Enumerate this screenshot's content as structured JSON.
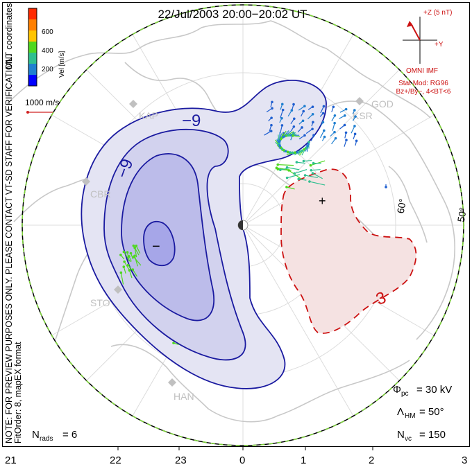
{
  "title": "22/Jul/2003 20:00−20:02 UT",
  "colorbar": {
    "label": "Vel [m/s]",
    "ticks": [
      "600",
      "400",
      "200"
    ],
    "colors": [
      "#ff2a00",
      "#ff7f00",
      "#ffc400",
      "#4fd81f",
      "#2ebf8f",
      "#1f7fd0",
      "#0000ff"
    ]
  },
  "coords_label": "MLT coordinates",
  "velocity_scale": "1000 m/s",
  "imf": {
    "bz_label": "+Z (5 nT)",
    "by_label": "+Y",
    "source": "OMNI IMF",
    "stat_mod": "Stat Mod: RG96",
    "bin": "Bz+/By−, 4<BT<6"
  },
  "station_labels": [
    "KAP",
    "CBR",
    "STO",
    "HAN",
    "GOD",
    "KSR"
  ],
  "latitude_labels": [
    "60°",
    "50°"
  ],
  "contour_labels": [
    "−9",
    "−9",
    "3"
  ],
  "extrema": {
    "min": "−",
    "max": "+"
  },
  "mlt_labels": [
    "21",
    "22",
    "23",
    "0",
    "1",
    "2",
    "3"
  ],
  "side_note": {
    "line1": "NOTE: FOR PREVIEW PURPOSES ONLY. PLEASE CONTACT VT-SD STAFF FOR VERIFICATION.",
    "line2": "FitOrder: 8, mapEX format"
  },
  "stats": {
    "nrads_label": "N",
    "nrads_sub": "rads",
    "nrads_value": "= 6",
    "phi_label": "Φ",
    "phi_sub": "pc",
    "phi_value": "= 30 kV",
    "lambda_label": "Λ",
    "lambda_sub": "HM",
    "lambda_value": "= 50°",
    "nvc_label": "N",
    "nvc_sub": "vc",
    "nvc_value": "= 150"
  },
  "colors": {
    "neg_contour": "#1a1aa0",
    "pos_contour": "#cc1111",
    "neg_fill_1": "#e4e4f3",
    "neg_fill_2": "#d2d2ee",
    "neg_fill_3": "#bcbcea",
    "neg_fill_4": "#a6a6e8",
    "pos_fill": "#f5e2e2",
    "coast": "#c8c8c8",
    "grid": "#dcdcdc"
  }
}
